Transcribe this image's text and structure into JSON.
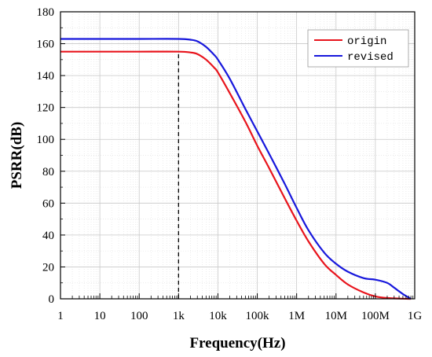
{
  "chart_data": {
    "type": "line",
    "title": "",
    "xlabel": "Frequency(Hz)",
    "ylabel": "PSRR(dB)",
    "x_scale": "log",
    "xlim": [
      1,
      1000000000
    ],
    "ylim": [
      0,
      180
    ],
    "x_ticks": [
      1,
      10,
      100,
      1000,
      10000,
      100000,
      1000000,
      10000000,
      100000000,
      1000000000
    ],
    "x_tick_labels": [
      "1",
      "10",
      "100",
      "1k",
      "10k",
      "100k",
      "1M",
      "10M",
      "100M",
      "1G"
    ],
    "y_ticks": [
      0,
      20,
      40,
      60,
      80,
      100,
      120,
      140,
      160,
      180
    ],
    "y_tick_labels": [
      "0",
      "20",
      "40",
      "60",
      "80",
      "100",
      "120",
      "140",
      "160",
      "180"
    ],
    "grid": true,
    "legend_position": "top-right",
    "annotations": [
      {
        "type": "vertical-dashed-line",
        "x": 1000,
        "y_top": 155
      }
    ],
    "series": [
      {
        "name": "origin",
        "color": "#e8141c",
        "x": [
          1,
          10,
          100,
          1000,
          2000,
          3000,
          5000,
          8000,
          10000,
          20000,
          50000,
          100000,
          200000,
          500000,
          1000000,
          2000000,
          5000000,
          10000000,
          20000000,
          50000000,
          100000000,
          200000000,
          500000000,
          800000000
        ],
        "y": [
          155,
          155,
          155,
          155,
          154.5,
          153.5,
          150,
          145,
          142,
          129,
          111,
          96,
          82,
          63,
          49,
          36,
          22,
          15,
          9,
          4,
          1.5,
          0.5,
          0.1,
          0
        ]
      },
      {
        "name": "revised",
        "color": "#1818dc",
        "x": [
          1,
          10,
          100,
          1000,
          2000,
          3000,
          5000,
          8000,
          10000,
          20000,
          50000,
          100000,
          200000,
          500000,
          1000000,
          2000000,
          5000000,
          10000000,
          20000000,
          50000000,
          100000000,
          200000000,
          300000000,
          500000000,
          800000000
        ],
        "y": [
          163,
          163,
          163,
          163,
          162.5,
          161.5,
          158,
          153,
          150,
          138,
          119,
          105,
          91,
          72,
          57,
          43,
          29,
          22,
          17,
          13,
          12,
          10,
          7,
          3,
          0
        ]
      }
    ]
  }
}
